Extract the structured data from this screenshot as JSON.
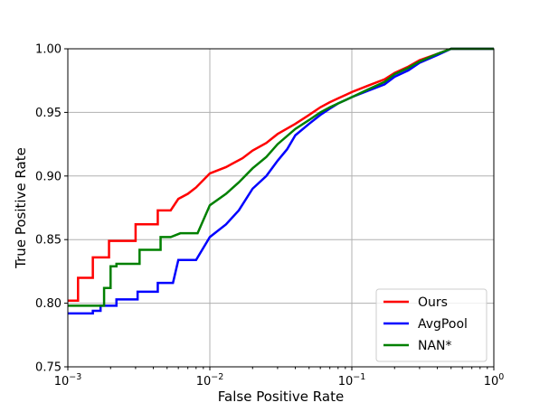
{
  "chart_data": {
    "type": "line",
    "xlabel": "False Positive Rate",
    "ylabel": "True Positive Rate",
    "xscale": "log",
    "xlim": [
      0.001,
      1
    ],
    "ylim": [
      0.75,
      1.0
    ],
    "grid": true,
    "legend_position": "lower-right",
    "xticks": [
      {
        "value": 0.001,
        "base": "10",
        "exp": "−3"
      },
      {
        "value": 0.01,
        "base": "10",
        "exp": "−2"
      },
      {
        "value": 0.1,
        "base": "10",
        "exp": "−1"
      },
      {
        "value": 1,
        "base": "10",
        "exp": "0"
      }
    ],
    "yticks": [
      {
        "value": 0.75,
        "label": "0.75"
      },
      {
        "value": 0.8,
        "label": "0.80"
      },
      {
        "value": 0.85,
        "label": "0.85"
      },
      {
        "value": 0.9,
        "label": "0.90"
      },
      {
        "value": 0.95,
        "label": "0.95"
      },
      {
        "value": 1.0,
        "label": "1.00"
      }
    ],
    "series": [
      {
        "name": "Ours",
        "color": "#ff0000",
        "points": [
          [
            0.001,
            0.802
          ],
          [
            0.00118,
            0.802
          ],
          [
            0.00118,
            0.82
          ],
          [
            0.0015,
            0.82
          ],
          [
            0.0015,
            0.836
          ],
          [
            0.00195,
            0.836
          ],
          [
            0.00195,
            0.849
          ],
          [
            0.003,
            0.849
          ],
          [
            0.003,
            0.862
          ],
          [
            0.0043,
            0.862
          ],
          [
            0.0043,
            0.873
          ],
          [
            0.0053,
            0.873
          ],
          [
            0.006,
            0.882
          ],
          [
            0.007,
            0.886
          ],
          [
            0.008,
            0.891
          ],
          [
            0.01,
            0.902
          ],
          [
            0.013,
            0.907
          ],
          [
            0.017,
            0.914
          ],
          [
            0.02,
            0.92
          ],
          [
            0.025,
            0.926
          ],
          [
            0.03,
            0.933
          ],
          [
            0.04,
            0.941
          ],
          [
            0.05,
            0.948
          ],
          [
            0.06,
            0.954
          ],
          [
            0.07,
            0.958
          ],
          [
            0.08,
            0.961
          ],
          [
            0.1,
            0.966
          ],
          [
            0.13,
            0.971
          ],
          [
            0.17,
            0.976
          ],
          [
            0.2,
            0.981
          ],
          [
            0.25,
            0.986
          ],
          [
            0.3,
            0.991
          ],
          [
            0.4,
            0.996
          ],
          [
            0.5,
            1.0
          ],
          [
            1,
            1.0
          ]
        ]
      },
      {
        "name": "AvgPool",
        "color": "#0000ff",
        "points": [
          [
            0.001,
            0.792
          ],
          [
            0.0015,
            0.792
          ],
          [
            0.0015,
            0.794
          ],
          [
            0.0017,
            0.794
          ],
          [
            0.0017,
            0.798
          ],
          [
            0.0022,
            0.798
          ],
          [
            0.0022,
            0.803
          ],
          [
            0.0031,
            0.803
          ],
          [
            0.0031,
            0.809
          ],
          [
            0.0043,
            0.809
          ],
          [
            0.0043,
            0.816
          ],
          [
            0.0055,
            0.816
          ],
          [
            0.006,
            0.834
          ],
          [
            0.008,
            0.834
          ],
          [
            0.01,
            0.852
          ],
          [
            0.013,
            0.862
          ],
          [
            0.016,
            0.873
          ],
          [
            0.02,
            0.89
          ],
          [
            0.025,
            0.9
          ],
          [
            0.03,
            0.912
          ],
          [
            0.035,
            0.921
          ],
          [
            0.04,
            0.932
          ],
          [
            0.05,
            0.941
          ],
          [
            0.06,
            0.948
          ],
          [
            0.07,
            0.953
          ],
          [
            0.08,
            0.957
          ],
          [
            0.1,
            0.962
          ],
          [
            0.13,
            0.967
          ],
          [
            0.17,
            0.972
          ],
          [
            0.2,
            0.978
          ],
          [
            0.25,
            0.983
          ],
          [
            0.3,
            0.989
          ],
          [
            0.4,
            0.995
          ],
          [
            0.5,
            1.0
          ],
          [
            1,
            1.0
          ]
        ]
      },
      {
        "name": "NAN*",
        "color": "#008000",
        "points": [
          [
            0.001,
            0.798
          ],
          [
            0.0018,
            0.798
          ],
          [
            0.0018,
            0.812
          ],
          [
            0.002,
            0.812
          ],
          [
            0.002,
            0.829
          ],
          [
            0.0022,
            0.829
          ],
          [
            0.0022,
            0.831
          ],
          [
            0.0032,
            0.831
          ],
          [
            0.0032,
            0.842
          ],
          [
            0.0045,
            0.842
          ],
          [
            0.0045,
            0.852
          ],
          [
            0.0053,
            0.852
          ],
          [
            0.0062,
            0.855
          ],
          [
            0.0082,
            0.855
          ],
          [
            0.01,
            0.877
          ],
          [
            0.013,
            0.886
          ],
          [
            0.016,
            0.895
          ],
          [
            0.02,
            0.906
          ],
          [
            0.025,
            0.915
          ],
          [
            0.03,
            0.925
          ],
          [
            0.04,
            0.937
          ],
          [
            0.05,
            0.944
          ],
          [
            0.06,
            0.95
          ],
          [
            0.07,
            0.954
          ],
          [
            0.08,
            0.957
          ],
          [
            0.1,
            0.962
          ],
          [
            0.13,
            0.968
          ],
          [
            0.17,
            0.974
          ],
          [
            0.2,
            0.98
          ],
          [
            0.25,
            0.985
          ],
          [
            0.3,
            0.99
          ],
          [
            0.4,
            0.996
          ],
          [
            0.5,
            1.0
          ],
          [
            1,
            1.0
          ]
        ]
      }
    ]
  }
}
